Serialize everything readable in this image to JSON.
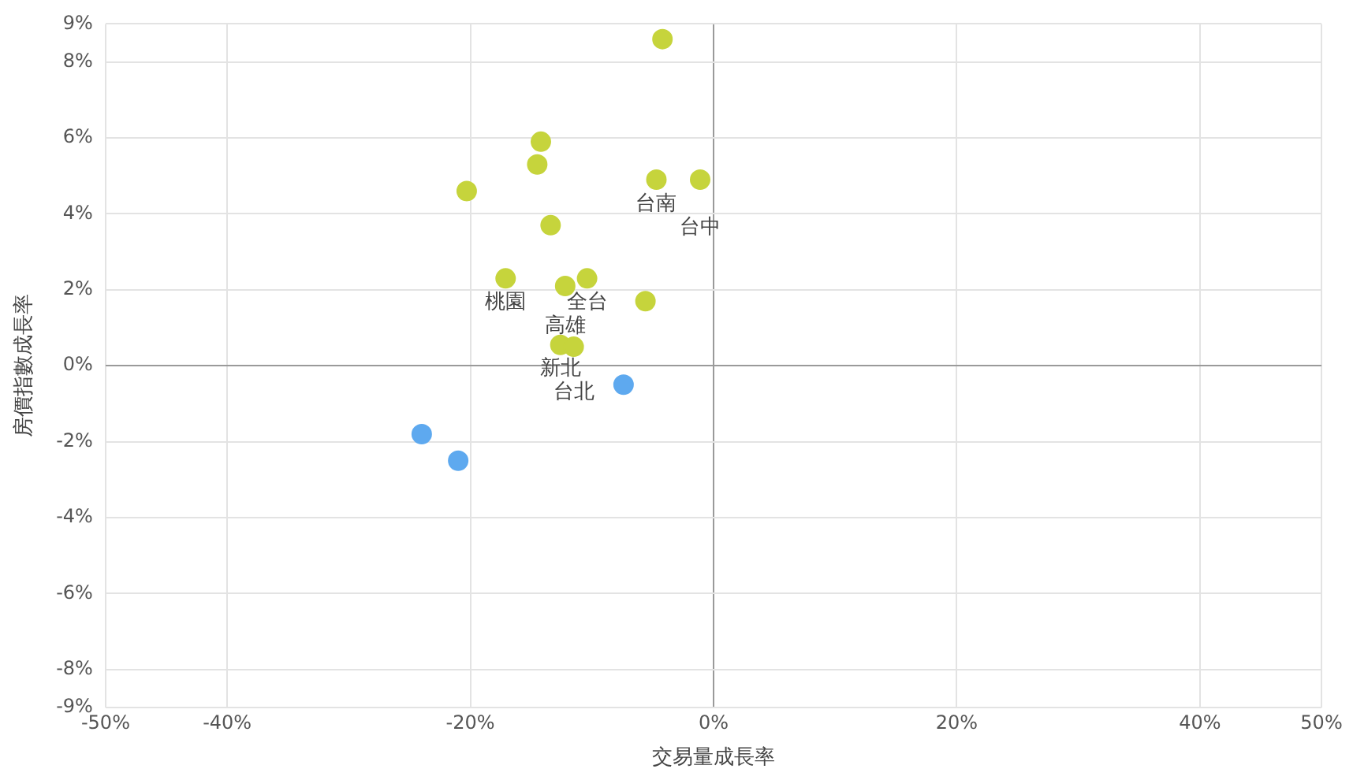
{
  "chart_data": {
    "type": "scatter",
    "xlabel": "交易量成長率",
    "ylabel": "房價指數成長率",
    "xlim": [
      -50,
      50
    ],
    "ylim": [
      -9,
      9
    ],
    "xticks": [
      {
        "value": -50,
        "label": "-50%"
      },
      {
        "value": -40,
        "label": "-40%"
      },
      {
        "value": -20,
        "label": "-20%"
      },
      {
        "value": 0,
        "label": "0%"
      },
      {
        "value": 20,
        "label": "20%"
      },
      {
        "value": 40,
        "label": "40%"
      },
      {
        "value": 50,
        "label": "50%"
      }
    ],
    "yticks": [
      {
        "value": -9,
        "label": "-9%"
      },
      {
        "value": -8,
        "label": "-8%"
      },
      {
        "value": -6,
        "label": "-6%"
      },
      {
        "value": -4,
        "label": "-4%"
      },
      {
        "value": -2,
        "label": "-2%"
      },
      {
        "value": 0,
        "label": "0%"
      },
      {
        "value": 2,
        "label": "2%"
      },
      {
        "value": 4,
        "label": "4%"
      },
      {
        "value": 6,
        "label": "6%"
      },
      {
        "value": 8,
        "label": "8%"
      },
      {
        "value": 9,
        "label": "9%"
      }
    ],
    "series": [
      {
        "color": "#c6d43c",
        "x": [
          -4.2,
          -14.2,
          -14.5,
          -20.3,
          -4.7,
          -1.1,
          -13.4,
          -17.1,
          -12.2,
          -10.4,
          -5.6,
          -12.6,
          -11.5
        ],
        "values": [
          8.6,
          5.9,
          5.3,
          4.6,
          4.9,
          4.9,
          3.7,
          2.3,
          2.1,
          2.3,
          1.7,
          0.55,
          0.5
        ]
      },
      {
        "color": "#5ea9ef",
        "x": [
          -7.4,
          -24.0,
          -21.0
        ],
        "values": [
          -0.5,
          -1.8,
          -2.5
        ]
      }
    ],
    "annotations": [
      {
        "text": "台南",
        "x": -4.7,
        "y": 4.9
      },
      {
        "text": "台中",
        "x": -1.1,
        "y": 4.9
      },
      {
        "text": "桃園",
        "x": -17.1,
        "y": 2.3
      },
      {
        "text": "全台",
        "x": -10.4,
        "y": 2.3
      },
      {
        "text": "高雄",
        "x": -12.2,
        "y": 2.1
      },
      {
        "text": "新北",
        "x": -12.6,
        "y": 0.55
      },
      {
        "text": "台北",
        "x": -11.5,
        "y": 0.5
      }
    ],
    "grid": true,
    "legend": false,
    "marker": "circle"
  }
}
